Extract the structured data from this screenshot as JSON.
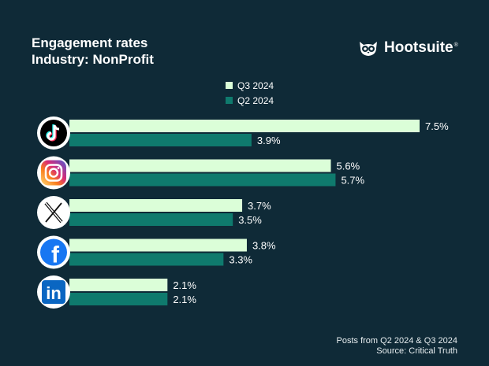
{
  "header": {
    "title": "Engagement rates",
    "subtitle": "Industry: NonProfit"
  },
  "brand": {
    "name": "Hootsuite",
    "registered": "®",
    "icon": "owl-logo-icon"
  },
  "footer": {
    "line1": "Posts from Q2 2024 & Q3 2024",
    "line2": "Source: Critical Truth"
  },
  "colors": {
    "background": "#0f2a37",
    "q3": "#dbfed8",
    "q2": "#0f7a6d",
    "icon_ring": "#ffffff"
  },
  "chart_data": {
    "type": "bar",
    "orientation": "horizontal",
    "title": "Engagement rates",
    "subtitle": "Industry: NonProfit",
    "categories": [
      "TikTok",
      "Instagram",
      "X",
      "Facebook",
      "LinkedIn"
    ],
    "category_icons": [
      "tiktok-icon",
      "instagram-icon",
      "x-icon",
      "facebook-icon",
      "linkedin-icon"
    ],
    "series": [
      {
        "name": "Q3 2024",
        "values": [
          7.5,
          5.6,
          3.7,
          3.8,
          2.1
        ],
        "labels": [
          "7.5%",
          "5.6%",
          "3.7%",
          "3.8%",
          "2.1%"
        ]
      },
      {
        "name": "Q2 2024",
        "values": [
          3.9,
          5.7,
          3.5,
          3.3,
          2.1
        ],
        "labels": [
          "3.9%",
          "5.7%",
          "3.5%",
          "3.3%",
          "2.1%"
        ]
      }
    ],
    "legend": [
      "Q3 2024",
      "Q2 2024"
    ],
    "legend_position": "top-center",
    "xlim": [
      0,
      7.5
    ],
    "xlabel": "",
    "ylabel": "",
    "grid": false
  }
}
